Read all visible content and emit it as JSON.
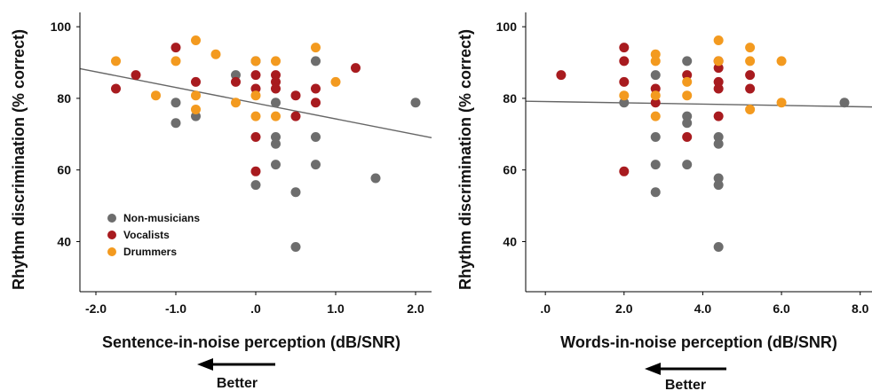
{
  "chart_data": [
    {
      "type": "scatter",
      "xlabel": "Sentence-in-noise perception (dB/SNR)",
      "ylabel": "Rhythm discrimination (% correct)",
      "xlim": [
        -2.2,
        2.2
      ],
      "ylim": [
        26,
        104
      ],
      "x_ticks": [
        -2.0,
        -1.0,
        0.0,
        1.0,
        2.0
      ],
      "x_tick_labels": [
        "-2.0",
        "-1.0",
        ".0",
        "1.0",
        "2.0"
      ],
      "y_ticks": [
        40,
        60,
        80,
        100
      ],
      "y_tick_labels": [
        "40",
        "60",
        "80",
        "100"
      ],
      "grid": false,
      "legend_position": "bottom-left",
      "annotation": "Better",
      "trend_line": [
        [
          -2.2,
          88.3
        ],
        [
          2.2,
          69.0
        ]
      ],
      "series": [
        {
          "name": "Non-musicians",
          "color": "#6d6d6d",
          "points": [
            [
              -1.0,
              78.8
            ],
            [
              -1.0,
              73.1
            ],
            [
              -0.75,
              75.0
            ],
            [
              -0.25,
              86.5
            ],
            [
              0.0,
              90.4
            ],
            [
              0.0,
              55.8
            ],
            [
              0.25,
              78.8
            ],
            [
              0.25,
              69.2
            ],
            [
              0.25,
              67.3
            ],
            [
              0.25,
              61.5
            ],
            [
              0.5,
              53.8
            ],
            [
              0.5,
              38.5
            ],
            [
              0.75,
              90.4
            ],
            [
              0.75,
              69.2
            ],
            [
              0.75,
              61.5
            ],
            [
              1.5,
              57.7
            ],
            [
              2.0,
              78.8
            ]
          ]
        },
        {
          "name": "Vocalists",
          "color": "#a81b1f",
          "points": [
            [
              -1.75,
              82.7
            ],
            [
              -1.5,
              86.5
            ],
            [
              -1.0,
              94.2
            ],
            [
              -0.75,
              84.6
            ],
            [
              -0.25,
              84.6
            ],
            [
              0.0,
              86.5
            ],
            [
              0.0,
              82.7
            ],
            [
              0.0,
              69.2
            ],
            [
              0.0,
              59.6
            ],
            [
              0.25,
              86.5
            ],
            [
              0.25,
              84.6
            ],
            [
              0.25,
              82.7
            ],
            [
              0.5,
              80.8
            ],
            [
              0.5,
              75.0
            ],
            [
              0.75,
              82.7
            ],
            [
              0.75,
              78.8
            ],
            [
              1.25,
              88.5
            ]
          ]
        },
        {
          "name": "Drummers",
          "color": "#f39a1f",
          "points": [
            [
              -1.75,
              90.4
            ],
            [
              -1.25,
              80.8
            ],
            [
              -1.0,
              90.4
            ],
            [
              -0.75,
              96.2
            ],
            [
              -0.75,
              80.8
            ],
            [
              -0.75,
              76.9
            ],
            [
              -0.5,
              92.3
            ],
            [
              -0.25,
              78.8
            ],
            [
              0.0,
              90.4
            ],
            [
              0.0,
              80.8
            ],
            [
              0.0,
              75.0
            ],
            [
              0.25,
              90.4
            ],
            [
              0.25,
              75.0
            ],
            [
              0.75,
              94.2
            ],
            [
              1.0,
              84.6
            ]
          ]
        }
      ]
    },
    {
      "type": "scatter",
      "xlabel": "Words-in-noise perception (dB/SNR)",
      "ylabel": "Rhythm discrimination (% correct)",
      "xlim": [
        -0.5,
        8.3
      ],
      "ylim": [
        26,
        104
      ],
      "x_ticks": [
        0.0,
        2.0,
        4.0,
        6.0,
        8.0
      ],
      "x_tick_labels": [
        ".0",
        "2.0",
        "4.0",
        "6.0",
        "8.0"
      ],
      "y_ticks": [
        40,
        60,
        80,
        100
      ],
      "y_tick_labels": [
        "40",
        "60",
        "80",
        "100"
      ],
      "grid": false,
      "annotation": "Better",
      "trend_line": [
        [
          -0.5,
          79.2
        ],
        [
          8.3,
          77.6
        ]
      ],
      "series": [
        {
          "name": "Non-musicians",
          "color": "#6d6d6d",
          "points": [
            [
              2.0,
              78.8
            ],
            [
              2.8,
              86.5
            ],
            [
              2.8,
              69.2
            ],
            [
              2.8,
              61.5
            ],
            [
              2.8,
              53.8
            ],
            [
              3.6,
              90.4
            ],
            [
              3.6,
              75.0
            ],
            [
              3.6,
              73.1
            ],
            [
              3.6,
              61.5
            ],
            [
              4.4,
              69.2
            ],
            [
              4.4,
              67.3
            ],
            [
              4.4,
              57.7
            ],
            [
              4.4,
              55.8
            ],
            [
              4.4,
              38.5
            ],
            [
              7.6,
              78.8
            ]
          ]
        },
        {
          "name": "Vocalists",
          "color": "#a81b1f",
          "points": [
            [
              0.4,
              86.5
            ],
            [
              2.0,
              94.2
            ],
            [
              2.0,
              90.4
            ],
            [
              2.0,
              84.6
            ],
            [
              2.0,
              59.6
            ],
            [
              2.8,
              82.7
            ],
            [
              2.8,
              78.8
            ],
            [
              3.6,
              86.5
            ],
            [
              3.6,
              69.2
            ],
            [
              4.4,
              90.4
            ],
            [
              4.4,
              88.5
            ],
            [
              4.4,
              84.6
            ],
            [
              4.4,
              82.7
            ],
            [
              4.4,
              75.0
            ],
            [
              5.2,
              86.5
            ],
            [
              5.2,
              82.7
            ]
          ]
        },
        {
          "name": "Drummers",
          "color": "#f39a1f",
          "points": [
            [
              2.0,
              80.8
            ],
            [
              2.8,
              92.3
            ],
            [
              2.8,
              90.4
            ],
            [
              2.8,
              80.8
            ],
            [
              2.8,
              75.0
            ],
            [
              3.6,
              84.6
            ],
            [
              3.6,
              80.8
            ],
            [
              4.4,
              96.2
            ],
            [
              4.4,
              90.4
            ],
            [
              5.2,
              94.2
            ],
            [
              5.2,
              90.4
            ],
            [
              5.2,
              76.9
            ],
            [
              6.0,
              90.4
            ],
            [
              6.0,
              78.8
            ]
          ]
        }
      ]
    }
  ]
}
